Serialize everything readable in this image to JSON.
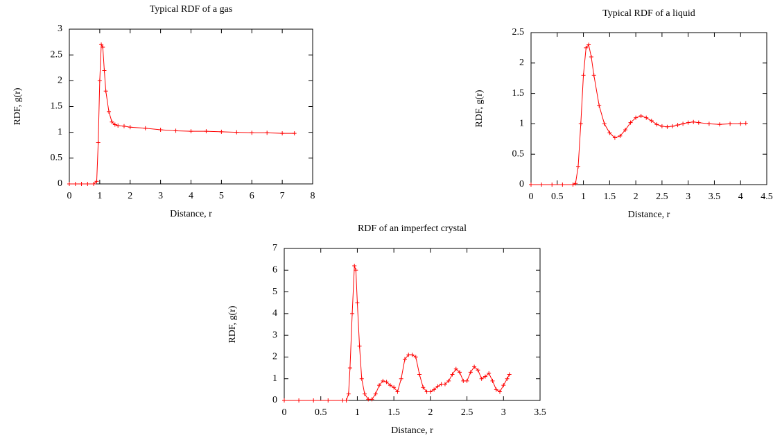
{
  "chart_data": [
    {
      "type": "line",
      "title": "Typical RDF of a gas",
      "xlabel": "Distance, r",
      "ylabel": "RDF, g(r)",
      "x": [
        0,
        0.2,
        0.4,
        0.6,
        0.8,
        0.9,
        0.95,
        1.0,
        1.05,
        1.1,
        1.15,
        1.2,
        1.3,
        1.4,
        1.5,
        1.6,
        1.8,
        2,
        2.5,
        3,
        3.5,
        4,
        4.5,
        5,
        5.5,
        6,
        6.5,
        7,
        7.4
      ],
      "series": [
        {
          "color": "#ff0000",
          "values": [
            0,
            0,
            0,
            0,
            0,
            0.05,
            0.8,
            2.0,
            2.7,
            2.65,
            2.2,
            1.8,
            1.4,
            1.2,
            1.15,
            1.13,
            1.12,
            1.1,
            1.08,
            1.05,
            1.03,
            1.02,
            1.02,
            1.01,
            1.0,
            0.99,
            0.99,
            0.98,
            0.98
          ]
        }
      ],
      "xlim": [
        0,
        8
      ],
      "ylim": [
        0,
        3
      ],
      "xticks": [
        0,
        1,
        2,
        3,
        4,
        5,
        6,
        7,
        8
      ],
      "yticks": [
        0,
        0.5,
        1,
        1.5,
        2,
        2.5,
        3
      ]
    },
    {
      "type": "line",
      "title": "Typical RDF of a liquid",
      "xlabel": "Distance, r",
      "ylabel": "RDF, g(r)",
      "x": [
        0,
        0.2,
        0.4,
        0.6,
        0.8,
        0.85,
        0.9,
        0.95,
        1.0,
        1.05,
        1.1,
        1.15,
        1.2,
        1.3,
        1.4,
        1.5,
        1.6,
        1.7,
        1.8,
        1.9,
        2.0,
        2.1,
        2.2,
        2.3,
        2.4,
        2.5,
        2.6,
        2.7,
        2.8,
        2.9,
        3.0,
        3.1,
        3.2,
        3.4,
        3.6,
        3.8,
        4.0,
        4.1
      ],
      "series": [
        {
          "color": "#ff0000",
          "values": [
            0,
            0,
            0,
            0,
            0,
            0.02,
            0.3,
            1.0,
            1.8,
            2.25,
            2.3,
            2.1,
            1.8,
            1.3,
            1.0,
            0.85,
            0.77,
            0.8,
            0.9,
            1.02,
            1.1,
            1.13,
            1.1,
            1.05,
            0.99,
            0.96,
            0.95,
            0.96,
            0.98,
            1.0,
            1.02,
            1.03,
            1.02,
            1.0,
            0.99,
            1.0,
            1.0,
            1.01
          ]
        }
      ],
      "xlim": [
        0,
        4.5
      ],
      "ylim": [
        0,
        2.5
      ],
      "xticks": [
        0,
        0.5,
        1,
        1.5,
        2,
        2.5,
        3,
        3.5,
        4,
        4.5
      ],
      "yticks": [
        0,
        0.5,
        1,
        1.5,
        2,
        2.5
      ]
    },
    {
      "type": "line",
      "title": "RDF of an imperfect crystal",
      "xlabel": "Distance, r",
      "ylabel": "RDF, g(r)",
      "x": [
        0,
        0.2,
        0.4,
        0.6,
        0.8,
        0.85,
        0.88,
        0.9,
        0.93,
        0.96,
        0.98,
        1.0,
        1.03,
        1.06,
        1.1,
        1.15,
        1.2,
        1.25,
        1.3,
        1.35,
        1.4,
        1.45,
        1.5,
        1.55,
        1.6,
        1.65,
        1.7,
        1.75,
        1.8,
        1.85,
        1.9,
        1.95,
        2.0,
        2.05,
        2.1,
        2.15,
        2.2,
        2.25,
        2.3,
        2.35,
        2.4,
        2.45,
        2.5,
        2.55,
        2.6,
        2.65,
        2.7,
        2.75,
        2.8,
        2.85,
        2.9,
        2.95,
        3.0,
        3.05,
        3.08
      ],
      "series": [
        {
          "color": "#ff0000",
          "values": [
            0,
            0,
            0,
            0,
            0,
            0,
            0.3,
            1.5,
            4.0,
            6.2,
            6.0,
            4.5,
            2.5,
            1.0,
            0.3,
            0.05,
            0.05,
            0.3,
            0.7,
            0.9,
            0.85,
            0.7,
            0.6,
            0.4,
            1.0,
            1.9,
            2.1,
            2.1,
            2.0,
            1.2,
            0.6,
            0.4,
            0.4,
            0.5,
            0.65,
            0.75,
            0.75,
            0.9,
            1.2,
            1.45,
            1.3,
            0.9,
            0.9,
            1.3,
            1.55,
            1.4,
            1.0,
            1.1,
            1.25,
            0.9,
            0.5,
            0.4,
            0.7,
            1.0,
            1.2
          ]
        }
      ],
      "xlim": [
        0,
        3.5
      ],
      "ylim": [
        0,
        7
      ],
      "xticks": [
        0,
        0.5,
        1,
        1.5,
        2,
        2.5,
        3,
        3.5
      ],
      "yticks": [
        0,
        1,
        2,
        3,
        4,
        5,
        6,
        7
      ]
    }
  ]
}
